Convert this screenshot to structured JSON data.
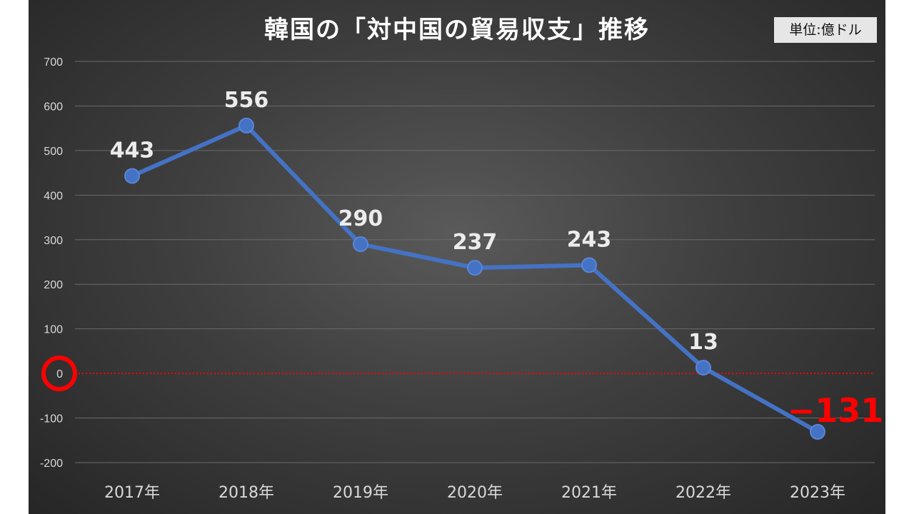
{
  "header": {
    "title": "韓国の「対中国の貿易収支」推移",
    "unit": "単位:億ドル"
  },
  "chart_data": {
    "type": "line",
    "categories": [
      "2017年",
      "2018年",
      "2019年",
      "2020年",
      "2021年",
      "2022年",
      "2023年"
    ],
    "series": [
      {
        "values": [
          443,
          556,
          290,
          237,
          243,
          13,
          -131
        ]
      }
    ],
    "data_labels": [
      "443",
      "556",
      "290",
      "237",
      "243",
      "13",
      "−131"
    ],
    "ylim": [
      -200,
      700
    ],
    "yticks": [
      700,
      600,
      500,
      400,
      300,
      200,
      100,
      0,
      -100,
      -200
    ],
    "grid": true,
    "zero_line": {
      "style": "dotted",
      "color": "#ff0000",
      "highlighted_with_circle": true
    },
    "colors": {
      "line": "#4472c4",
      "negative_label": "#ff0000",
      "circle_highlight": "#ff0000",
      "background": "#3f3f3f"
    }
  }
}
